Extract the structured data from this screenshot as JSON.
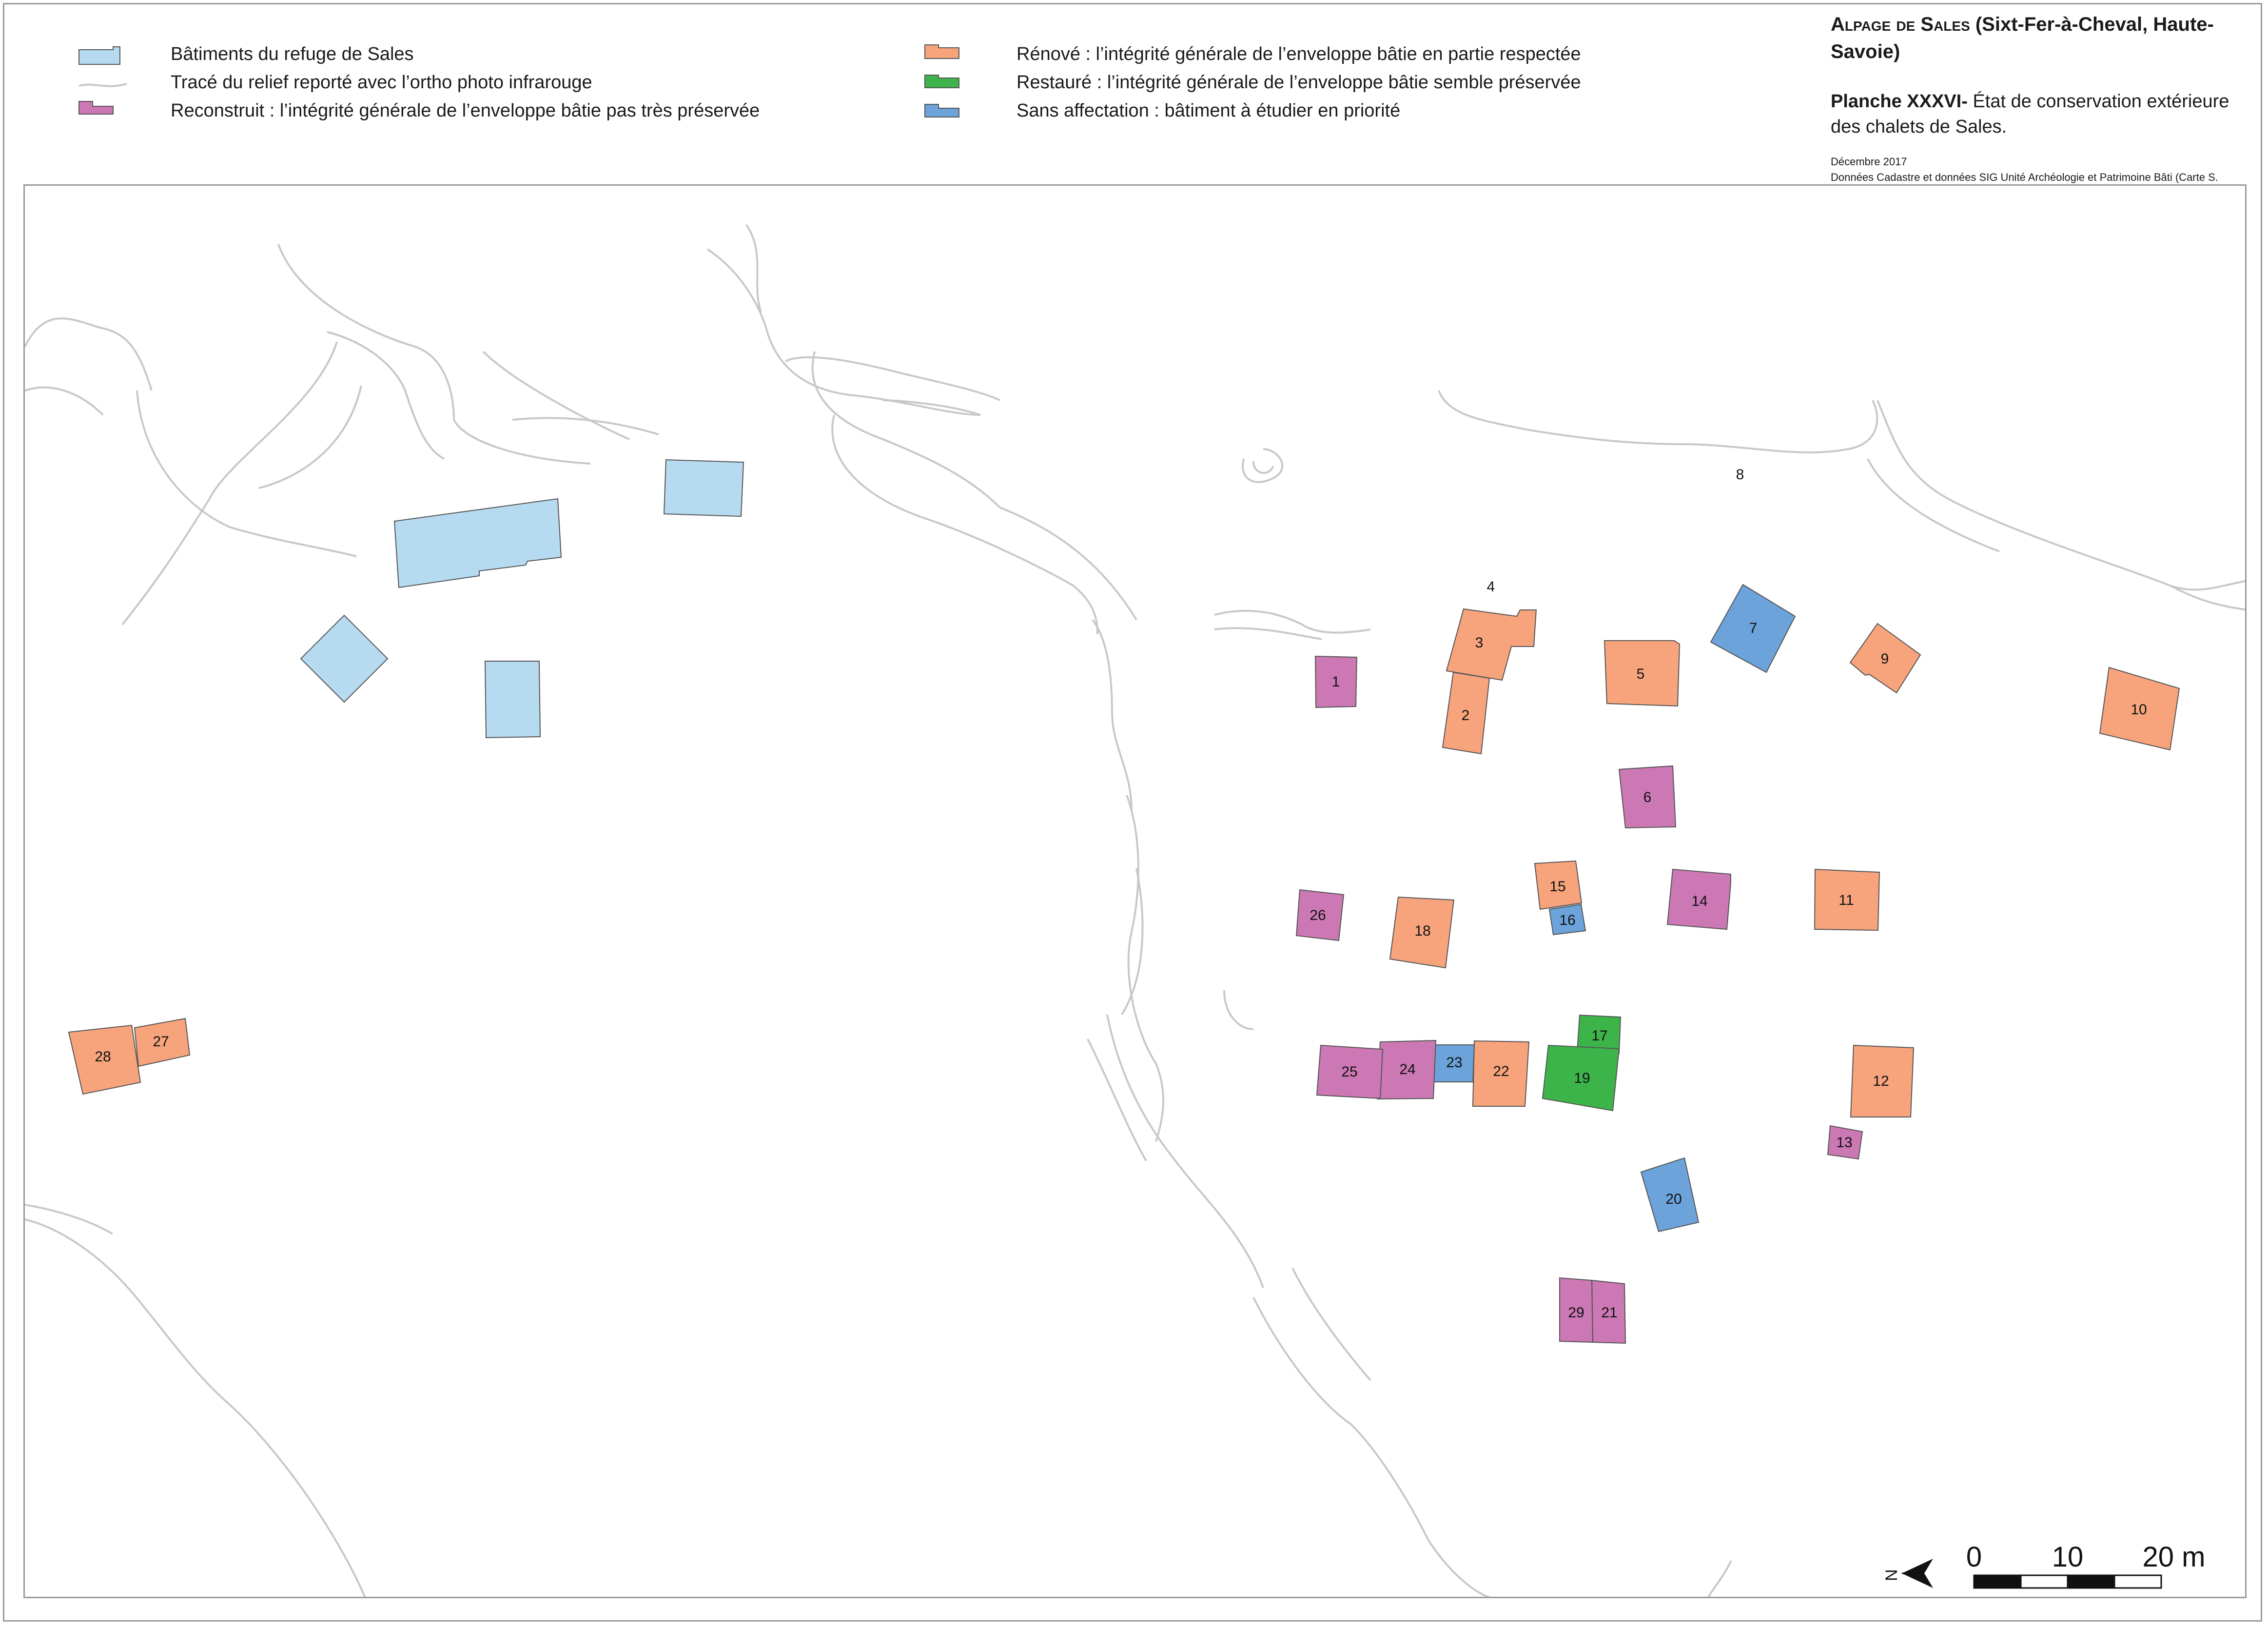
{
  "legend": {
    "items": [
      {
        "label": "Bâtiments du refuge de Sales",
        "kind": "refuge",
        "color": "#b6dbf1"
      },
      {
        "label": "Tracé du relief reporté avec l’ortho photo infrarouge",
        "kind": "relief",
        "color": "#c8c8c8"
      },
      {
        "label": "Reconstruit : l’intégrité générale de l’enveloppe bâtie pas très préservée",
        "kind": "reconstruit",
        "color": "#cc78b4"
      },
      {
        "label": "Rénové : l’intégrité générale de l’enveloppe bâtie en partie respectée",
        "kind": "renove",
        "color": "#f7a47d"
      },
      {
        "label": "Restauré : l’intégrité générale de l’enveloppe bâtie semble préservée",
        "kind": "restaure",
        "color": "#3cb44a"
      },
      {
        "label": "Sans affectation : bâtiment à étudier en priorité",
        "kind": "sans",
        "color": "#6ba3da"
      }
    ]
  },
  "title": {
    "main_a": "Alpage de Sales",
    "main_b": " (Sixt-Fer-à-Cheval, Haute-Savoie)",
    "planche_bold": "Planche XXXVI-",
    "planche_text": " État de conservation extérieure des chalets de Sales.",
    "date": "Décembre 2017",
    "source": "Données Cadastre et données SIG Unité Archéologie et Patrimoine Bâti (Carte S. Mahfoudi)"
  },
  "colors": {
    "refuge": "#b6dbf1",
    "reconstruit": "#cc78b4",
    "renove": "#f7a47d",
    "restaure": "#3cb44a",
    "sans": "#6ba3da",
    "relief": "#c8c8c8",
    "outline": "#555555"
  },
  "buildings": [
    {
      "id": "1",
      "label": "1",
      "status": "reconstruit"
    },
    {
      "id": "2",
      "label": "2",
      "status": "renove"
    },
    {
      "id": "3",
      "label": "3",
      "status": "renove"
    },
    {
      "id": "5",
      "label": "5",
      "status": "renove"
    },
    {
      "id": "6",
      "label": "6",
      "status": "reconstruit"
    },
    {
      "id": "7",
      "label": "7",
      "status": "sans"
    },
    {
      "id": "9",
      "label": "9",
      "status": "renove"
    },
    {
      "id": "10",
      "label": "10",
      "status": "renove"
    },
    {
      "id": "11",
      "label": "11",
      "status": "renove"
    },
    {
      "id": "12",
      "label": "12",
      "status": "renove"
    },
    {
      "id": "13",
      "label": "13",
      "status": "reconstruit"
    },
    {
      "id": "14",
      "label": "14",
      "status": "reconstruit"
    },
    {
      "id": "15",
      "label": "15",
      "status": "renove"
    },
    {
      "id": "16",
      "label": "16",
      "status": "sans"
    },
    {
      "id": "17",
      "label": "17",
      "status": "restaure"
    },
    {
      "id": "18",
      "label": "18",
      "status": "renove"
    },
    {
      "id": "19",
      "label": "19",
      "status": "restaure"
    },
    {
      "id": "20",
      "label": "20",
      "status": "sans"
    },
    {
      "id": "21",
      "label": "21",
      "status": "reconstruit"
    },
    {
      "id": "22",
      "label": "22",
      "status": "renove"
    },
    {
      "id": "23",
      "label": "23",
      "status": "sans"
    },
    {
      "id": "24",
      "label": "24",
      "status": "reconstruit"
    },
    {
      "id": "25",
      "label": "25",
      "status": "reconstruit"
    },
    {
      "id": "26",
      "label": "26",
      "status": "reconstruit"
    },
    {
      "id": "27",
      "label": "27",
      "status": "renove"
    },
    {
      "id": "28",
      "label": "28",
      "status": "renove"
    },
    {
      "id": "29",
      "label": "29",
      "status": "reconstruit"
    }
  ],
  "site_labels": [
    {
      "id": "4",
      "label": "4"
    },
    {
      "id": "8",
      "label": "8"
    }
  ],
  "refuge_buildings": [
    "r1",
    "r2",
    "r3",
    "r4"
  ],
  "north": {
    "label": "N"
  },
  "scale": {
    "labels": [
      "0",
      "10",
      "20 m"
    ]
  }
}
